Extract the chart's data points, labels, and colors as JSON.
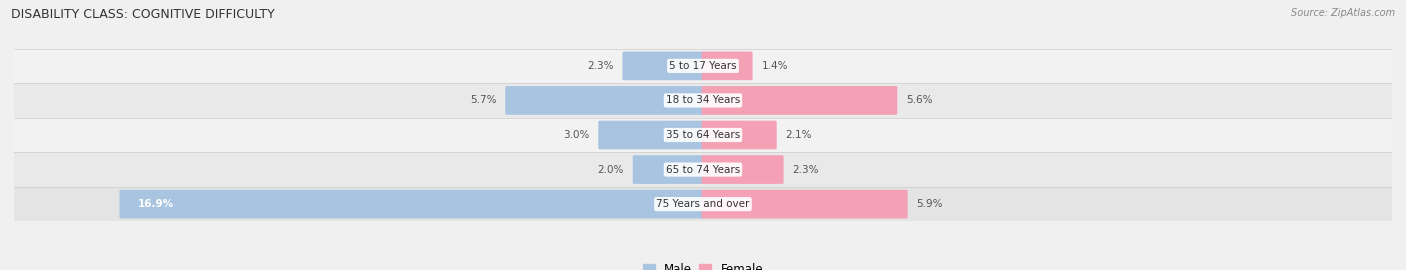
{
  "title": "DISABILITY CLASS: COGNITIVE DIFFICULTY",
  "source": "Source: ZipAtlas.com",
  "categories": [
    "5 to 17 Years",
    "18 to 34 Years",
    "35 to 64 Years",
    "65 to 74 Years",
    "75 Years and over"
  ],
  "male_values": [
    2.3,
    5.7,
    3.0,
    2.0,
    16.9
  ],
  "female_values": [
    1.4,
    5.6,
    2.1,
    2.3,
    5.9
  ],
  "max_val": 20.0,
  "male_color": "#a8c4e0",
  "female_color": "#f4a0b5",
  "row_colors": [
    "#f0f0f0",
    "#e8e8e8",
    "#f0f0f0",
    "#e8e8e8",
    "#e0e0e0"
  ],
  "title_fontsize": 9,
  "label_fontsize": 7.5,
  "tick_fontsize": 8
}
